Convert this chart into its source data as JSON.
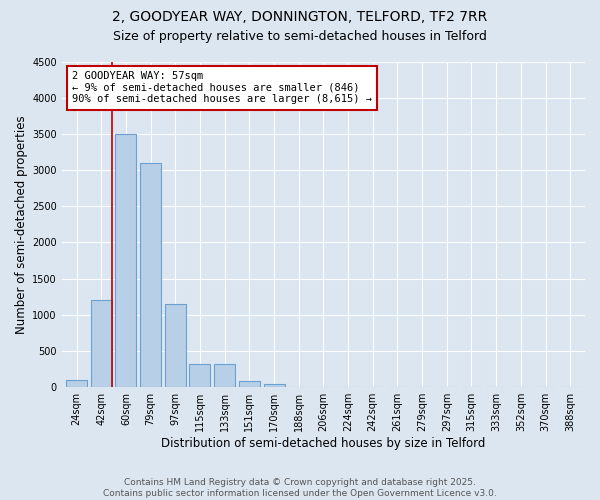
{
  "title_line1": "2, GOODYEAR WAY, DONNINGTON, TELFORD, TF2 7RR",
  "title_line2": "Size of property relative to semi-detached houses in Telford",
  "xlabel": "Distribution of semi-detached houses by size in Telford",
  "ylabel": "Number of semi-detached properties",
  "categories": [
    "24sqm",
    "42sqm",
    "60sqm",
    "79sqm",
    "97sqm",
    "115sqm",
    "133sqm",
    "151sqm",
    "170sqm",
    "188sqm",
    "206sqm",
    "224sqm",
    "242sqm",
    "261sqm",
    "279sqm",
    "297sqm",
    "315sqm",
    "333sqm",
    "352sqm",
    "370sqm",
    "388sqm"
  ],
  "values": [
    100,
    1200,
    3500,
    3100,
    1150,
    320,
    320,
    90,
    50,
    5,
    0,
    0,
    0,
    0,
    0,
    0,
    0,
    0,
    0,
    0,
    0
  ],
  "bar_color": "#b8cfe8",
  "bar_edge_color": "#6ca0d0",
  "vline_color": "#c00000",
  "vline_x": 1.42,
  "annotation_text": "2 GOODYEAR WAY: 57sqm\n← 9% of semi-detached houses are smaller (846)\n90% of semi-detached houses are larger (8,615) →",
  "annotation_box_color": "#ffffff",
  "annotation_box_edge": "#c00000",
  "ylim": [
    0,
    4500
  ],
  "yticks": [
    0,
    500,
    1000,
    1500,
    2000,
    2500,
    3000,
    3500,
    4000,
    4500
  ],
  "background_color": "#dce6f1",
  "plot_bg_color": "#dce6f1",
  "footer_text": "Contains HM Land Registry data © Crown copyright and database right 2025.\nContains public sector information licensed under the Open Government Licence v3.0.",
  "title_fontsize": 10,
  "subtitle_fontsize": 9,
  "axis_label_fontsize": 8.5,
  "tick_fontsize": 7,
  "footer_fontsize": 6.5,
  "annotation_fontsize": 7.5
}
